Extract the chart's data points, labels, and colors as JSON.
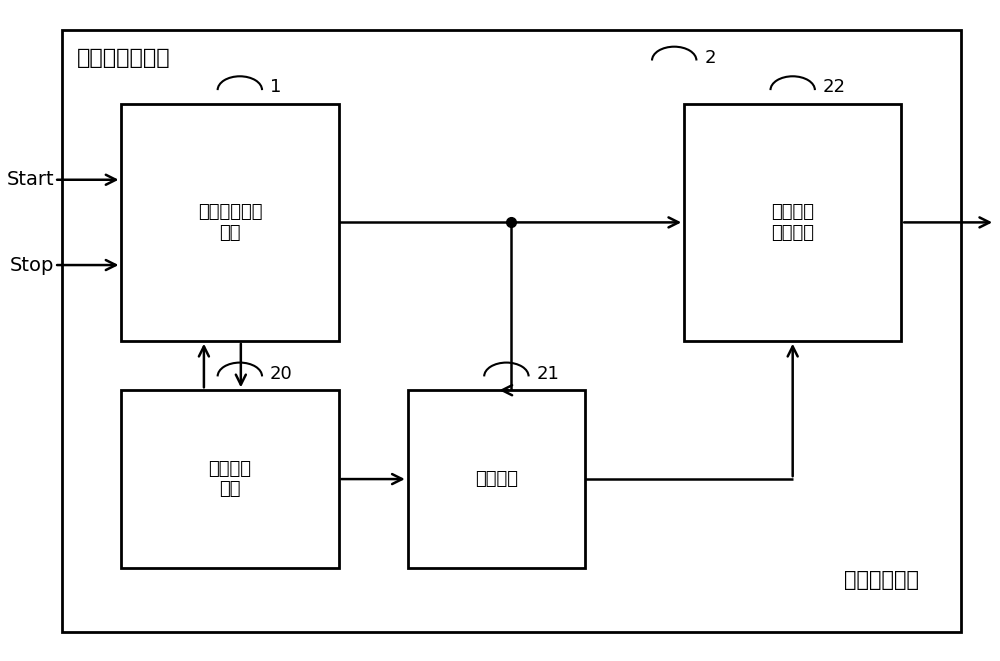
{
  "title": "时间数字转换器",
  "subtitle": "误差校准装置",
  "block1_label": "时间数字转换\n模块",
  "block20_label": "采样控制\n模块",
  "block21_label": "统计模块",
  "block22_label": "时间间隔\n校准模块",
  "label_start": "Start",
  "label_stop": "Stop",
  "id1": "1",
  "id2": "2",
  "id20": "20",
  "id21": "21",
  "id22": "22",
  "figsize": [
    10.0,
    6.61
  ],
  "dpi": 100,
  "bg_color": "#ffffff",
  "box_color": "#000000"
}
